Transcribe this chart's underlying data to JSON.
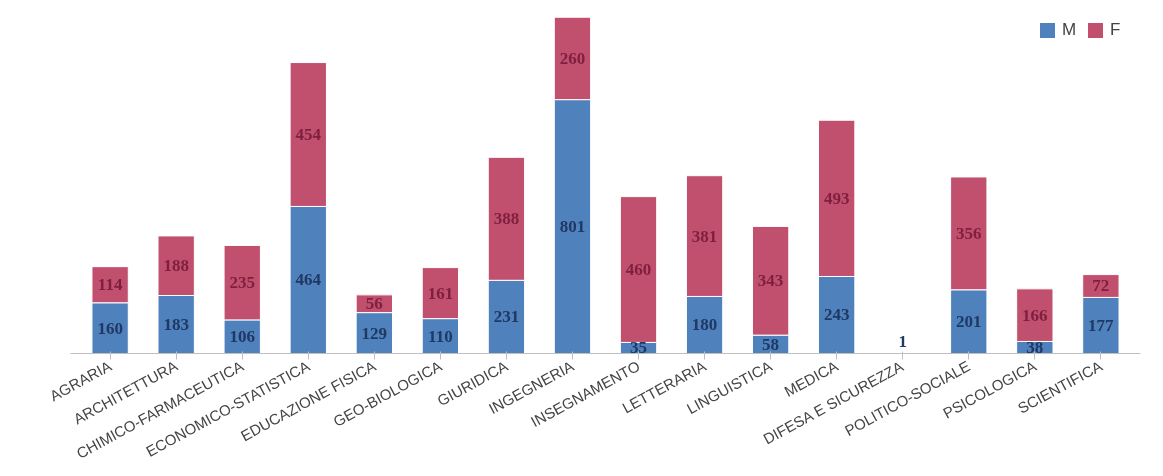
{
  "chart_data": {
    "type": "bar",
    "stacked": true,
    "data_labels": true,
    "legend": "top right",
    "grid": false,
    "categories": [
      "AGRARIA",
      "ARCHITETTURA",
      "CHIMICO-FARMACEUTICA",
      "ECONOMICO-STATISTICA",
      "EDUCAZIONE FISICA",
      "GEO-BIOLOGICA",
      "GIURIDICA",
      "INGEGNERIA",
      "INSEGNAMENTO",
      "LETTERARIA",
      "LINGUISTICA",
      "MEDICA",
      "DIFESA E SICUREZZA",
      "POLITICO-SOCIALE",
      "PSICOLOGICA",
      "SCIENTIFICA"
    ],
    "series": [
      {
        "name": "M",
        "color": "#4f81bd",
        "values": [
          160,
          183,
          106,
          464,
          129,
          110,
          231,
          801,
          35,
          180,
          58,
          243,
          1,
          201,
          38,
          177
        ]
      },
      {
        "name": "F",
        "color": "#c0506e",
        "values": [
          114,
          188,
          235,
          454,
          56,
          161,
          388,
          260,
          460,
          381,
          343,
          493,
          null,
          356,
          166,
          72
        ]
      }
    ]
  }
}
